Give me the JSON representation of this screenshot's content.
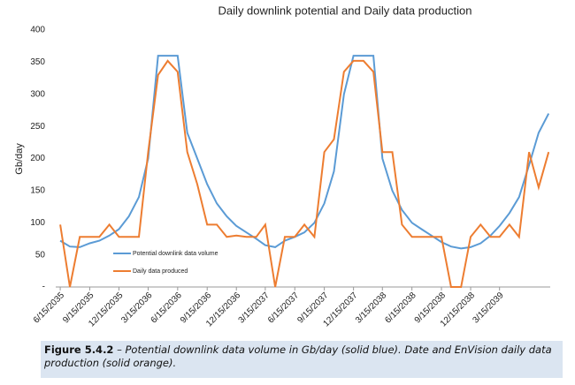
{
  "chart_data": {
    "type": "line",
    "title": "Daily downlink potential and Daily data production",
    "y_label": "Gb/day",
    "x": [
      "6/15/2035",
      "7/15/2035",
      "8/15/2035",
      "9/15/2035",
      "10/15/2035",
      "11/15/2035",
      "12/15/2035",
      "1/15/2036",
      "2/15/2036",
      "3/15/2036",
      "4/15/2036",
      "5/15/2036",
      "6/15/2036",
      "7/15/2036",
      "8/15/2036",
      "9/15/2036",
      "10/15/2036",
      "11/15/2036",
      "12/15/2036",
      "1/15/2037",
      "2/15/2037",
      "3/15/2037",
      "4/15/2037",
      "5/15/2037",
      "6/15/2037",
      "7/15/2037",
      "8/15/2037",
      "9/15/2037",
      "10/15/2037",
      "11/15/2037",
      "12/15/2037",
      "1/15/2038",
      "2/15/2038",
      "3/15/2038",
      "4/15/2038",
      "5/15/2038",
      "6/15/2038",
      "7/15/2038",
      "8/15/2038",
      "9/15/2038",
      "10/15/2038",
      "11/15/2038",
      "12/15/2038",
      "1/15/2039",
      "2/15/2039",
      "3/15/2039",
      "4/15/2039",
      "5/15/2039",
      "6/15/2039",
      "7/15/2039",
      "8/15/2039"
    ],
    "series": [
      {
        "name": "Potential downlink data volume",
        "color": "#5b9bd5",
        "values": [
          72,
          63,
          62,
          68,
          72,
          80,
          90,
          110,
          140,
          200,
          360,
          360,
          360,
          240,
          200,
          160,
          130,
          110,
          95,
          85,
          75,
          65,
          62,
          72,
          78,
          85,
          100,
          130,
          180,
          300,
          360,
          360,
          360,
          200,
          150,
          120,
          100,
          90,
          80,
          70,
          63,
          60,
          62,
          68,
          80,
          95,
          115,
          140,
          190,
          240,
          270
        ]
      },
      {
        "name": "Daily data produced",
        "color": "#ed7d31",
        "values": [
          97,
          0,
          78,
          78,
          78,
          97,
          78,
          78,
          78,
          210,
          330,
          352,
          335,
          210,
          160,
          97,
          97,
          78,
          80,
          78,
          78,
          97,
          0,
          78,
          78,
          97,
          78,
          210,
          230,
          335,
          352,
          352,
          335,
          210,
          210,
          97,
          78,
          78,
          78,
          78,
          0,
          0,
          78,
          97,
          78,
          78,
          97,
          78,
          210,
          155,
          210
        ]
      }
    ],
    "xlim": [
      "6/1/2035",
      "8/20/2039"
    ],
    "xticks": [
      "6/15/2035",
      "9/15/2035",
      "12/15/2035",
      "3/15/2036",
      "6/15/2036",
      "9/15/2036",
      "12/15/2036",
      "3/15/2037",
      "6/15/2037",
      "9/15/2037",
      "12/15/2037",
      "3/15/2038",
      "6/15/2038",
      "9/15/2038",
      "12/15/2038",
      "3/15/2039"
    ],
    "ylim": [
      0,
      400
    ],
    "yticks": [
      {
        "value": 0,
        "label": "-"
      },
      50,
      100,
      150,
      200,
      250,
      300,
      350,
      400
    ],
    "grid": false,
    "legend": "inside-lower-left"
  },
  "caption": {
    "label": "Figure 5.4.2",
    "text": " – Potential downlink data volume in Gb/day (solid blue). Date and EnVision daily data production (solid orange)."
  }
}
